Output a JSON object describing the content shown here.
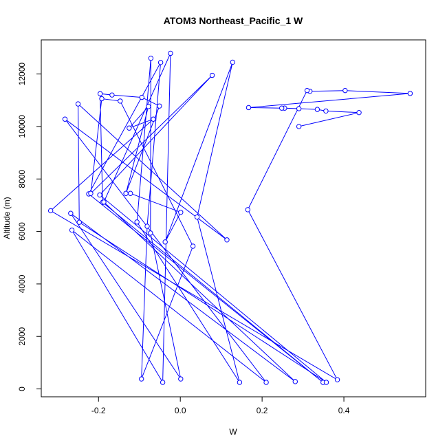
{
  "chart_data": {
    "type": "line",
    "title": "ATOM3 Northeast_Pacific_1 W",
    "xlabel": "W",
    "ylabel": "Altitude (m)",
    "xlim": [
      -0.34,
      0.6
    ],
    "ylim": [
      -300,
      13300
    ],
    "x_ticks": [
      -0.2,
      0.0,
      0.2,
      0.4
    ],
    "x_tick_labels": [
      "-0.2",
      "0.0",
      "0.2",
      "0.4"
    ],
    "y_ticks": [
      0,
      2000,
      4000,
      6000,
      8000,
      10000,
      12000
    ],
    "y_tick_labels": [
      "0",
      "2000",
      "4000",
      "6000",
      "8000",
      "10000",
      "12000"
    ],
    "grid": false,
    "legend": "none",
    "series": [
      {
        "color": "#0000ff",
        "marker": "open-circle",
        "points": [
          {
            "x": 0.29,
            "y": 10000
          },
          {
            "x": 0.437,
            "y": 10530
          },
          {
            "x": 0.356,
            "y": 10590
          },
          {
            "x": 0.335,
            "y": 10650
          },
          {
            "x": 0.29,
            "y": 10680
          },
          {
            "x": 0.255,
            "y": 10700
          },
          {
            "x": 0.248,
            "y": 10700
          },
          {
            "x": 0.167,
            "y": 10720
          },
          {
            "x": 0.562,
            "y": 11260
          },
          {
            "x": 0.403,
            "y": 11370
          },
          {
            "x": 0.317,
            "y": 11340
          },
          {
            "x": 0.31,
            "y": 11370
          },
          {
            "x": 0.165,
            "y": 6830
          },
          {
            "x": 0.384,
            "y": 350
          },
          {
            "x": -0.317,
            "y": 6790
          },
          {
            "x": -0.066,
            "y": 10280
          },
          {
            "x": -0.125,
            "y": 9940
          },
          {
            "x": -0.078,
            "y": 10760
          },
          {
            "x": -0.133,
            "y": 7450
          },
          {
            "x": -0.051,
            "y": 10780
          },
          {
            "x": -0.094,
            "y": 11110
          },
          {
            "x": -0.167,
            "y": 11200
          },
          {
            "x": -0.196,
            "y": 11250
          },
          {
            "x": -0.19,
            "y": 7110
          },
          {
            "x": 0.349,
            "y": 250
          },
          {
            "x": -0.224,
            "y": 7430
          },
          {
            "x": -0.048,
            "y": 12440
          },
          {
            "x": -0.081,
            "y": 6200
          },
          {
            "x": -0.095,
            "y": 380
          },
          {
            "x": 0.031,
            "y": 5440
          },
          {
            "x": -0.147,
            "y": 10970
          },
          {
            "x": -0.192,
            "y": 11060
          },
          {
            "x": -0.219,
            "y": 7450
          },
          {
            "x": 0.078,
            "y": 11950
          },
          {
            "x": -0.197,
            "y": 7390
          },
          {
            "x": 0.357,
            "y": 250
          },
          {
            "x": -0.247,
            "y": 6350
          },
          {
            "x": -0.25,
            "y": 10860
          },
          {
            "x": 0.114,
            "y": 5680
          },
          {
            "x": -0.282,
            "y": 10280
          },
          {
            "x": 0.21,
            "y": 250
          },
          {
            "x": -0.265,
            "y": 6050
          },
          {
            "x": -0.043,
            "y": 250
          },
          {
            "x": -0.024,
            "y": 12790
          },
          {
            "x": -0.187,
            "y": 7120
          },
          {
            "x": 0.281,
            "y": 280
          },
          {
            "x": -0.268,
            "y": 6690
          },
          {
            "x": 0.001,
            "y": 380
          },
          {
            "x": -0.073,
            "y": 5940
          },
          {
            "x": -0.072,
            "y": 12600
          },
          {
            "x": -0.106,
            "y": 6360
          },
          {
            "x": 0.145,
            "y": 250
          },
          {
            "x": 0.041,
            "y": 6550
          },
          {
            "x": 0.128,
            "y": 12450
          },
          {
            "x": -0.037,
            "y": 5600
          },
          {
            "x": 0.001,
            "y": 6730
          },
          {
            "x": -0.122,
            "y": 7450
          }
        ]
      }
    ]
  }
}
